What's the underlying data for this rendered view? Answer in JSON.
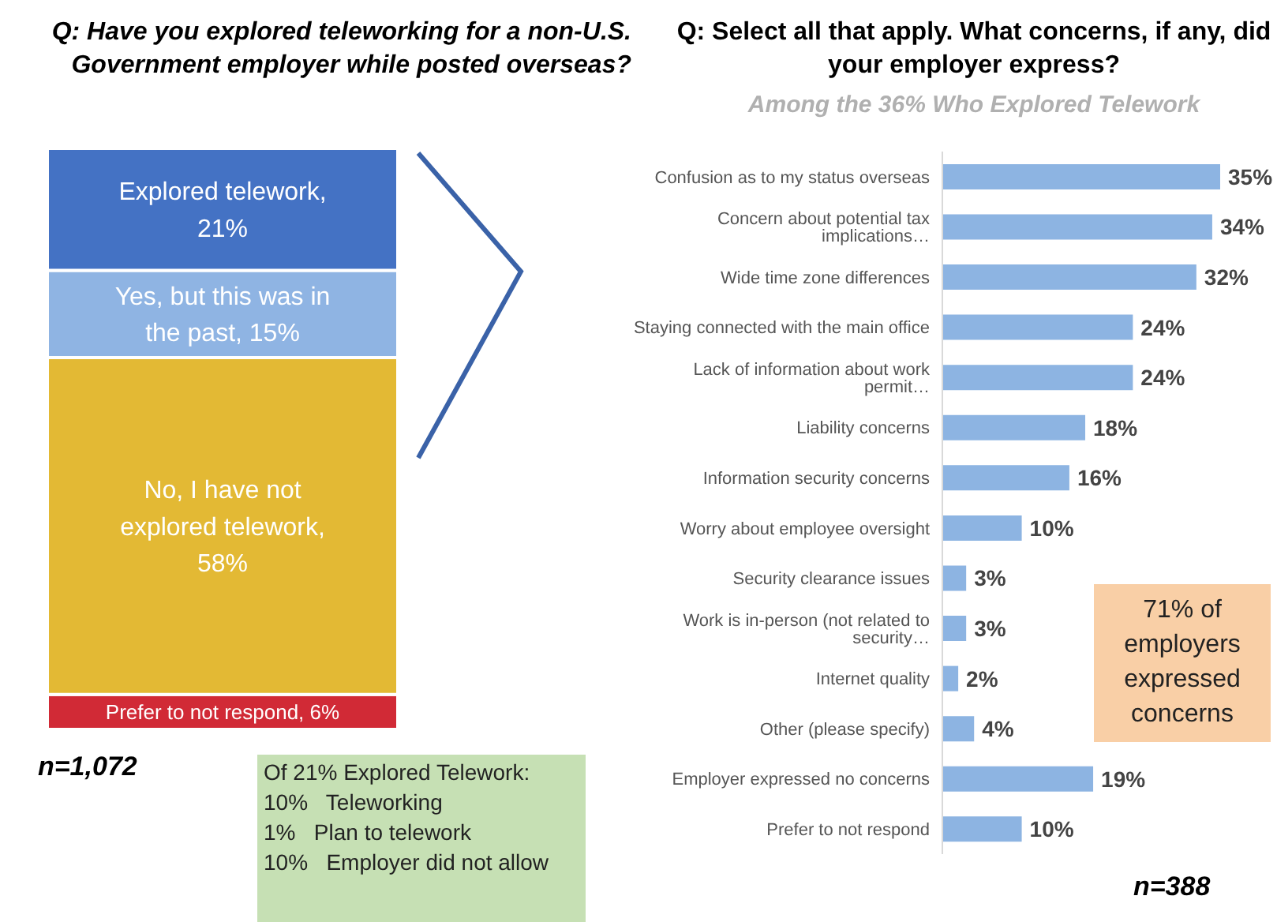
{
  "chart_data": [
    {
      "type": "bar",
      "stacked": true,
      "title": "Q: Have you explored teleworking for a non-U.S. Government employer while posted overseas?",
      "categories": [
        null
      ],
      "ylim": [
        0,
        100
      ],
      "tick_labels": false,
      "series": [
        {
          "color": "#d12a36",
          "values": [
            6
          ],
          "value_labels": [
            "Prefer to not respond, 6%"
          ]
        },
        {
          "color": "#e3b934",
          "values": [
            58
          ],
          "value_labels": [
            "No, I have not explored telework, 58%"
          ]
        },
        {
          "color": "#8fb4e3",
          "values": [
            15
          ],
          "value_labels": [
            "Yes, but this was in the past, 15%"
          ]
        },
        {
          "color": "#4472c4",
          "values": [
            21
          ],
          "value_labels": [
            "Explored telework, 21%"
          ]
        }
      ],
      "annotations": [
        "n=1,072",
        "Of 21% Explored Telework:",
        "10%   Teleworking",
        "1%   Plan to telework",
        "10%   Employer did not allow"
      ]
    },
    {
      "type": "bar",
      "orientation": "horizontal",
      "title": "Q: Select all that apply. What concerns, if any, did your employer express?",
      "subtitle": "Among the 36% Who Explored Telework",
      "categories": [
        "Confusion as to my status overseas",
        "Concern about potential tax implications…",
        "Wide time zone differences",
        "Staying connected with the main office",
        "Lack of information about work permit…",
        "Liability concerns",
        "Information security concerns",
        "Worry about employee oversight",
        "Security clearance issues",
        "Work is in-person (not related to security…",
        "Internet quality",
        "Other (please specify)",
        "Employer expressed no concerns",
        "Prefer to not respond"
      ],
      "values": [
        35,
        34,
        32,
        24,
        24,
        18,
        16,
        10,
        3,
        3,
        2,
        4,
        19,
        10
      ],
      "value_labels": [
        "35%",
        "34%",
        "32%",
        "24%",
        "24%",
        "18%",
        "16%",
        "10%",
        "3%",
        "3%",
        "2%",
        "4%",
        "19%",
        "10%"
      ],
      "color": "#8db4e2",
      "xlim": [
        0,
        35
      ],
      "tick_labels": "y",
      "annotations": [
        "71% of employers expressed concerns",
        "n=388"
      ]
    }
  ]
}
